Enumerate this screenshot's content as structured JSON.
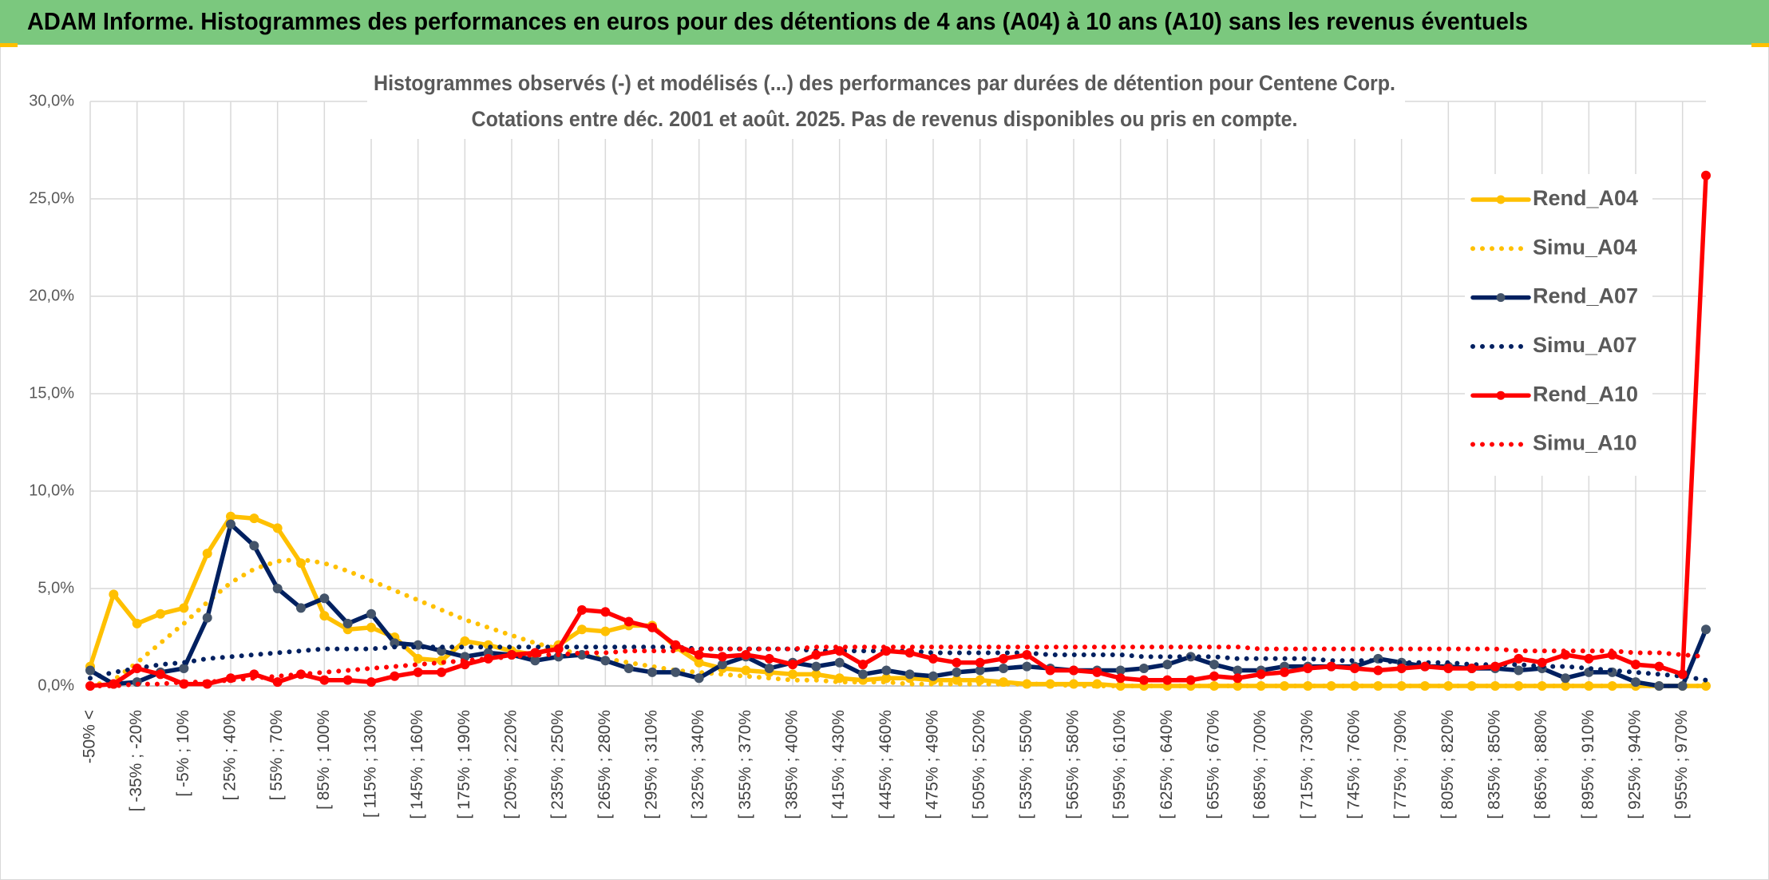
{
  "header": {
    "title": "ADAM Informe. Histogrammes des performances en euros pour des détentions de 4 ans (A04) à 10 ans (A10) sans les revenus éventuels"
  },
  "chart_data": {
    "type": "line",
    "title": "Histogrammes observés (-) et modélisés (...) des performances par durées de détention pour Centene Corp.",
    "subtitle": "Cotations entre déc. 2001 et août. 2025. Pas de revenus disponibles ou pris en compte.",
    "categories": [
      "-50% <",
      null,
      "[ -35% ; -20%",
      null,
      "[ -5% ; 10%",
      null,
      "[ 25% ; 40%",
      null,
      "[ 55% ; 70%",
      null,
      "[ 85% ; 100%",
      null,
      "[ 115% ; 130%",
      null,
      "[ 145% ; 160%",
      null,
      "[ 175% ; 190%",
      null,
      "[ 205% ; 220%",
      null,
      "[ 235% ; 250%",
      null,
      "[ 265% ; 280%",
      null,
      "[ 295% ; 310%",
      null,
      "[ 325% ; 340%",
      null,
      "[ 355% ; 370%",
      null,
      "[ 385% ; 400%",
      null,
      "[ 415% ; 430%",
      null,
      "[ 445% ; 460%",
      null,
      "[ 475% ; 490%",
      null,
      "[ 505% ; 520%",
      null,
      "[ 535% ; 550%",
      null,
      "[ 565% ; 580%",
      null,
      "[ 595% ; 610%",
      null,
      "[ 625% ; 640%",
      null,
      "[ 655% ; 670%",
      null,
      "[ 685% ; 700%",
      null,
      "[ 715% ; 730%",
      null,
      "[ 745% ; 760%",
      null,
      "[ 775% ; 790%",
      null,
      "[ 805% ; 820%",
      null,
      "[ 835% ; 850%",
      null,
      "[ 865% ; 880%",
      null,
      "[ 895% ; 910%",
      null,
      "[ 925% ; 940%",
      null,
      "[ 955% ; 970%",
      null
    ],
    "series": [
      {
        "name": "Rend_A04",
        "color": "#ffc000",
        "style": "solid",
        "markers": true,
        "values": [
          1.0,
          4.7,
          3.2,
          3.7,
          4.0,
          6.8,
          8.7,
          8.6,
          8.1,
          6.3,
          3.6,
          2.9,
          3.0,
          2.5,
          1.4,
          1.3,
          2.3,
          2.1,
          1.8,
          1.6,
          2.1,
          2.9,
          2.8,
          3.1,
          3.1,
          2.0,
          1.2,
          0.9,
          0.8,
          0.7,
          0.6,
          0.6,
          0.4,
          0.3,
          0.4,
          0.4,
          0.3,
          0.3,
          0.3,
          0.2,
          0.1,
          0.1,
          0.1,
          0.1,
          0.0,
          0.0,
          0.0,
          0.0,
          0.0,
          0.0,
          0.0,
          0.0,
          0.0,
          0.0,
          0.0,
          0.0,
          0.0,
          0.0,
          0.0,
          0.0,
          0.0,
          0.0,
          0.0,
          0.0,
          0.0,
          0.0,
          0.0,
          0.0,
          0.0,
          0.0
        ]
      },
      {
        "name": "Simu_A04",
        "color": "#ffc000",
        "style": "dotted",
        "markers": false,
        "values": [
          0.0,
          0.3,
          1.2,
          2.2,
          3.2,
          4.3,
          5.3,
          6.0,
          6.4,
          6.5,
          6.3,
          5.9,
          5.4,
          4.9,
          4.4,
          3.9,
          3.4,
          3.0,
          2.6,
          2.2,
          1.9,
          1.6,
          1.4,
          1.2,
          1.0,
          0.8,
          0.7,
          0.6,
          0.5,
          0.4,
          0.3,
          0.3,
          0.2,
          0.2,
          0.2,
          0.1,
          0.1,
          0.1,
          0.1,
          0.1,
          0.1,
          0.1,
          0.0,
          0.0,
          0.0,
          0.0,
          0.0,
          0.0,
          0.0,
          0.0,
          0.0,
          0.0,
          0.0,
          0.0,
          0.0,
          0.0,
          0.0,
          0.0,
          0.0,
          0.0,
          0.0,
          0.0,
          0.0,
          0.0,
          0.0,
          0.0,
          0.0,
          0.0,
          0.0,
          0.0
        ]
      },
      {
        "name": "Rend_A07",
        "color": "#002060",
        "marker_color": "#44546a",
        "style": "solid",
        "markers": true,
        "values": [
          0.8,
          0.1,
          0.2,
          0.7,
          0.9,
          3.5,
          8.3,
          7.2,
          5.0,
          4.0,
          4.5,
          3.2,
          3.7,
          2.2,
          2.1,
          1.8,
          1.5,
          1.7,
          1.6,
          1.3,
          1.5,
          1.6,
          1.3,
          0.9,
          0.7,
          0.7,
          0.4,
          1.1,
          1.5,
          0.9,
          1.2,
          1.0,
          1.2,
          0.6,
          0.8,
          0.6,
          0.5,
          0.7,
          0.8,
          0.9,
          1.0,
          0.9,
          0.8,
          0.8,
          0.8,
          0.9,
          1.1,
          1.5,
          1.1,
          0.8,
          0.8,
          1.0,
          1.0,
          1.0,
          1.0,
          1.4,
          1.2,
          1.0,
          1.0,
          0.9,
          0.9,
          0.8,
          0.9,
          0.4,
          0.7,
          0.7,
          0.2,
          0.0,
          0.0,
          2.9
        ]
      },
      {
        "name": "Simu_A07",
        "color": "#002060",
        "style": "dotted",
        "markers": false,
        "values": [
          0.4,
          0.7,
          0.9,
          1.1,
          1.2,
          1.4,
          1.5,
          1.6,
          1.7,
          1.8,
          1.9,
          1.9,
          1.9,
          2.0,
          2.0,
          2.0,
          2.0,
          2.0,
          2.0,
          2.0,
          2.0,
          2.0,
          2.0,
          2.0,
          2.0,
          2.0,
          1.9,
          1.9,
          1.9,
          1.9,
          1.9,
          1.8,
          1.8,
          1.8,
          1.8,
          1.8,
          1.7,
          1.7,
          1.7,
          1.7,
          1.7,
          1.6,
          1.6,
          1.6,
          1.6,
          1.5,
          1.5,
          1.5,
          1.5,
          1.4,
          1.4,
          1.4,
          1.4,
          1.3,
          1.3,
          1.3,
          1.2,
          1.2,
          1.2,
          1.1,
          1.1,
          1.1,
          1.0,
          1.0,
          0.9,
          0.8,
          0.7,
          0.6,
          0.5,
          0.3
        ]
      },
      {
        "name": "Rend_A10",
        "color": "#ff0000",
        "style": "solid",
        "markers": true,
        "values": [
          0.0,
          0.1,
          0.9,
          0.6,
          0.1,
          0.1,
          0.4,
          0.6,
          0.2,
          0.6,
          0.3,
          0.3,
          0.2,
          0.5,
          0.7,
          0.7,
          1.1,
          1.4,
          1.6,
          1.7,
          1.9,
          3.9,
          3.8,
          3.3,
          3.0,
          2.1,
          1.6,
          1.5,
          1.6,
          1.4,
          1.1,
          1.6,
          1.8,
          1.1,
          1.8,
          1.7,
          1.4,
          1.2,
          1.2,
          1.4,
          1.6,
          0.8,
          0.8,
          0.7,
          0.4,
          0.3,
          0.3,
          0.3,
          0.5,
          0.4,
          0.6,
          0.7,
          0.9,
          1.0,
          0.9,
          0.8,
          0.9,
          1.0,
          0.9,
          0.9,
          1.0,
          1.4,
          1.2,
          1.6,
          1.4,
          1.6,
          1.1,
          1.0,
          0.6,
          26.2
        ]
      },
      {
        "name": "Simu_A10",
        "color": "#ff0000",
        "style": "dotted",
        "markers": false,
        "values": [
          0.0,
          0.0,
          0.1,
          0.1,
          0.2,
          0.2,
          0.3,
          0.4,
          0.5,
          0.6,
          0.7,
          0.8,
          0.9,
          1.0,
          1.1,
          1.2,
          1.3,
          1.4,
          1.5,
          1.6,
          1.6,
          1.7,
          1.7,
          1.8,
          1.8,
          1.8,
          1.9,
          1.9,
          1.9,
          1.9,
          1.9,
          2.0,
          2.0,
          2.0,
          2.0,
          2.0,
          2.0,
          2.0,
          2.0,
          2.0,
          2.0,
          2.0,
          2.0,
          2.0,
          2.0,
          2.0,
          2.0,
          2.0,
          2.0,
          2.0,
          1.9,
          1.9,
          1.9,
          1.9,
          1.9,
          1.9,
          1.9,
          1.9,
          1.9,
          1.9,
          1.9,
          1.8,
          1.8,
          1.8,
          1.8,
          1.8,
          1.7,
          1.7,
          1.6,
          1.5
        ]
      }
    ],
    "ylim": [
      0,
      30
    ],
    "yticks": [
      {
        "value": 0,
        "label": "0,0%"
      },
      {
        "value": 5,
        "label": "5,0%"
      },
      {
        "value": 10,
        "label": "10,0%"
      },
      {
        "value": 15,
        "label": "15,0%"
      },
      {
        "value": 20,
        "label": "20,0%"
      },
      {
        "value": 25,
        "label": "25,0%"
      },
      {
        "value": 30,
        "label": "30,0%"
      }
    ],
    "grid": true,
    "legend": "right"
  }
}
